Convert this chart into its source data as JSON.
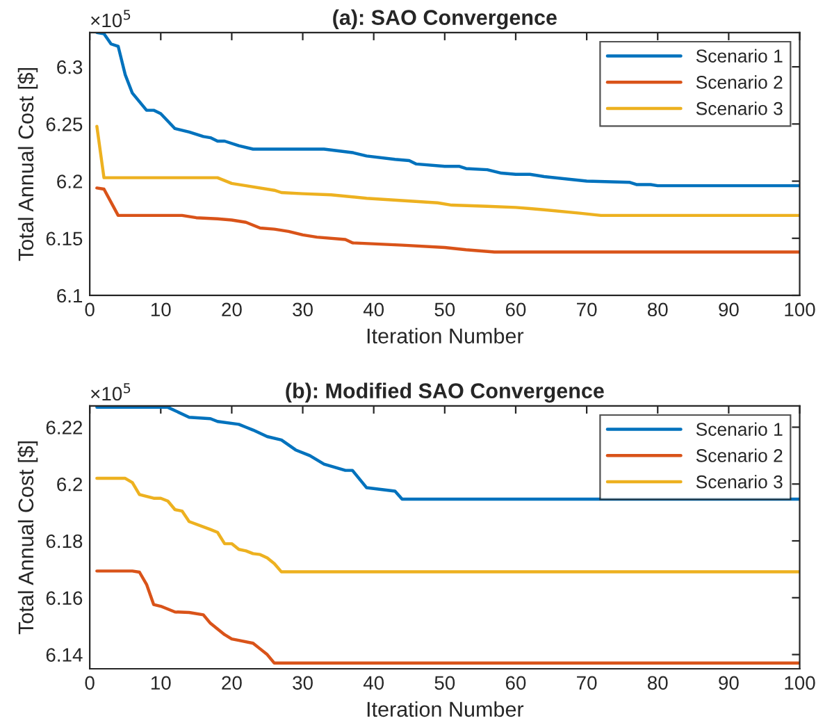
{
  "chart_data": [
    {
      "type": "line",
      "title": "(a): SAO Convergence",
      "xlabel": "Iteration Number",
      "ylabel": "Total Annual Cost [$]",
      "annotations": [
        "×10$^{5}$"
      ],
      "xlim": [
        0,
        100
      ],
      "xticks": [
        0,
        10,
        20,
        30,
        40,
        50,
        60,
        70,
        80,
        90,
        100
      ],
      "ylim": [
        6.1,
        6.33
      ],
      "yticks": [
        6.1,
        6.15,
        6.2,
        6.25,
        6.3
      ],
      "grid": false,
      "legend": "top right",
      "marker": "none",
      "line_style": "solid",
      "series": [
        {
          "name": "Scenario 1",
          "color": "#0072bd",
          "x": [
            1,
            2,
            3,
            4,
            5,
            6,
            8,
            9,
            10,
            12,
            14,
            16,
            17,
            18,
            19,
            21,
            23,
            33,
            37,
            39,
            43,
            45,
            46,
            50,
            52,
            53,
            56,
            58,
            60,
            62,
            64,
            70,
            76,
            77,
            79,
            80,
            100
          ],
          "values": [
            6.33,
            6.329,
            6.32,
            6.318,
            6.293,
            6.277,
            6.262,
            6.262,
            6.259,
            6.246,
            6.243,
            6.239,
            6.238,
            6.235,
            6.235,
            6.231,
            6.228,
            6.228,
            6.225,
            6.222,
            6.219,
            6.218,
            6.215,
            6.213,
            6.213,
            6.211,
            6.21,
            6.207,
            6.206,
            6.206,
            6.204,
            6.2,
            6.199,
            6.197,
            6.197,
            6.196,
            6.196
          ]
        },
        {
          "name": "Scenario 2",
          "color": "#d95319",
          "x": [
            1,
            2,
            4,
            13,
            15,
            18,
            20,
            22,
            24,
            26,
            28,
            30,
            32,
            36,
            37,
            44,
            50,
            53,
            57,
            100
          ],
          "values": [
            6.194,
            6.193,
            6.17,
            6.17,
            6.168,
            6.167,
            6.166,
            6.164,
            6.159,
            6.158,
            6.156,
            6.153,
            6.151,
            6.149,
            6.146,
            6.144,
            6.142,
            6.14,
            6.138,
            6.138
          ]
        },
        {
          "name": "Scenario 3",
          "color": "#edb120",
          "x": [
            1,
            2,
            18,
            20,
            22,
            26,
            27,
            30,
            34,
            39,
            44,
            49,
            51,
            56,
            60,
            62,
            64,
            69,
            72,
            100
          ],
          "values": [
            6.248,
            6.203,
            6.203,
            6.198,
            6.196,
            6.192,
            6.19,
            6.189,
            6.188,
            6.185,
            6.183,
            6.181,
            6.179,
            6.178,
            6.177,
            6.176,
            6.175,
            6.172,
            6.17,
            6.17
          ]
        }
      ]
    },
    {
      "type": "line",
      "title": "(b): Modified SAO Convergence",
      "xlabel": "Iteration Number",
      "ylabel": "Total Annual Cost [$]",
      "annotations": [
        "×10$^{5}$"
      ],
      "xlim": [
        0,
        100
      ],
      "xticks": [
        0,
        10,
        20,
        30,
        40,
        50,
        60,
        70,
        80,
        90,
        100
      ],
      "ylim": [
        6.135,
        6.2275
      ],
      "yticks": [
        6.14,
        6.16,
        6.18,
        6.2,
        6.22
      ],
      "grid": false,
      "legend": "top right",
      "marker": "none",
      "line_style": "solid",
      "series": [
        {
          "name": "Scenario 1",
          "color": "#0072bd",
          "x": [
            1,
            11,
            14,
            17,
            18,
            21,
            22,
            23,
            25,
            27,
            29,
            31,
            33,
            36,
            37,
            39,
            43,
            44,
            100
          ],
          "values": [
            6.227,
            6.227,
            6.2235,
            6.223,
            6.222,
            6.221,
            6.22,
            6.219,
            6.2167,
            6.2155,
            6.212,
            6.21,
            6.207,
            6.2048,
            6.2048,
            6.1987,
            6.1975,
            6.1947,
            6.1947
          ]
        },
        {
          "name": "Scenario 2",
          "color": "#d95319",
          "x": [
            1,
            6,
            7,
            8,
            9,
            10,
            12,
            14,
            16,
            17,
            18,
            19,
            20,
            21,
            23,
            24,
            25,
            26,
            100
          ],
          "values": [
            6.1694,
            6.1694,
            6.169,
            6.1647,
            6.1576,
            6.157,
            6.155,
            6.1548,
            6.154,
            6.151,
            6.149,
            6.147,
            6.1455,
            6.145,
            6.144,
            6.142,
            6.14,
            6.137,
            6.137
          ]
        },
        {
          "name": "Scenario 3",
          "color": "#edb120",
          "x": [
            1,
            5,
            6,
            7,
            9,
            10,
            11,
            12,
            13,
            14,
            17,
            18,
            19,
            20,
            21,
            22,
            23,
            24,
            25,
            26,
            27,
            100
          ],
          "values": [
            6.202,
            6.202,
            6.2005,
            6.1963,
            6.195,
            6.195,
            6.194,
            6.191,
            6.1905,
            6.1868,
            6.184,
            6.183,
            6.179,
            6.179,
            6.177,
            6.1765,
            6.1755,
            6.1752,
            6.174,
            6.172,
            6.1691,
            6.1691
          ]
        }
      ]
    }
  ]
}
